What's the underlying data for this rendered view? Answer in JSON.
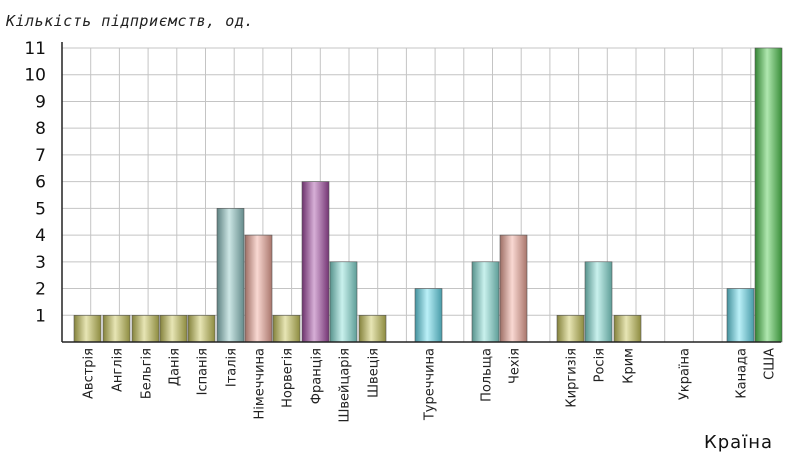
{
  "chart_data": {
    "type": "bar",
    "ylabel": "Кількість підприємств, од.",
    "xlabel": "Країна",
    "ylim": [
      0,
      11
    ],
    "yticks": [
      1,
      2,
      3,
      4,
      5,
      6,
      7,
      8,
      9,
      10,
      11
    ],
    "grid": true,
    "categories": [
      "Австрія",
      "Англія",
      "Бельгія",
      "Данія",
      "Іспанія",
      "Італія",
      "Німеччина",
      "Норвегія",
      "Франція",
      "Швейцарія",
      "Швеція",
      "Туреччина",
      "Польща",
      "Чехія",
      "Киргизія",
      "Росія",
      "Крим",
      "Україна",
      "Канада",
      "США"
    ],
    "values": [
      1,
      1,
      1,
      1,
      1,
      5,
      4,
      1,
      6,
      3,
      1,
      2,
      3,
      4,
      1,
      3,
      1,
      0,
      2,
      11
    ],
    "colors": [
      "#c9c65a",
      "#c9c65a",
      "#c9c65a",
      "#c9c65a",
      "#c9c65a",
      "#8fc7c6",
      "#f2a99a",
      "#c9c65a",
      "#a64da6",
      "#86e0d8",
      "#c9c65a",
      "#67ddf0",
      "#86e0d8",
      "#f2a99a",
      "#c9c65a",
      "#86e0d8",
      "#c9c65a",
      "#c9c65a",
      "#67ddf0",
      "#4fc94f"
    ]
  }
}
